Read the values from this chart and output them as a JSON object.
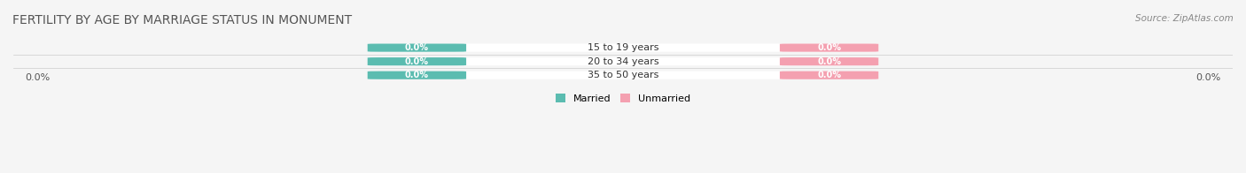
{
  "title": "FERTILITY BY AGE BY MARRIAGE STATUS IN MONUMENT",
  "source": "Source: ZipAtlas.com",
  "categories": [
    "15 to 19 years",
    "20 to 34 years",
    "35 to 50 years"
  ],
  "married_values": [
    0.0,
    0.0,
    0.0
  ],
  "unmarried_values": [
    0.0,
    0.0,
    0.0
  ],
  "married_color": "#5bbcb0",
  "unmarried_color": "#f4a0b0",
  "bar_bg_color": "#e8e8e8",
  "bar_left_label": "0.0%",
  "bar_right_label": "0.0%",
  "xlim": [
    -1,
    1
  ],
  "background_color": "#f5f5f5",
  "title_fontsize": 10,
  "label_fontsize": 8,
  "axis_label_left": "0.0%",
  "axis_label_right": "0.0%"
}
